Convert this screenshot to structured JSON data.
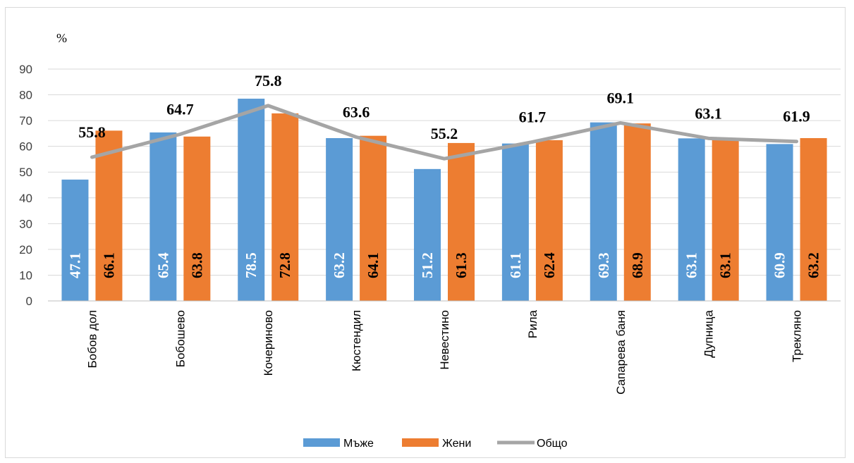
{
  "chart_data": {
    "type": "bar",
    "ylabel": "%",
    "ylim": [
      0,
      90
    ],
    "yticks": [
      0,
      10,
      20,
      30,
      40,
      50,
      60,
      70,
      80,
      90
    ],
    "grid": true,
    "legend_position": "bottom",
    "categories": [
      "Бобов дол",
      "Бобошево",
      "Кочериново",
      "Кюстендил",
      "Невестино",
      "Рила",
      "Сапарева баня",
      "Дупница",
      "Трекляно"
    ],
    "series": [
      {
        "name": "Мъже",
        "type": "bar",
        "color": "#5b9bd5",
        "label_color": "#ffffff",
        "values": [
          47.1,
          65.4,
          78.5,
          63.2,
          51.2,
          61.1,
          69.3,
          63.1,
          60.9
        ]
      },
      {
        "name": "Жени",
        "type": "bar",
        "color": "#ed7d31",
        "label_color": "#000000",
        "values": [
          66.1,
          63.8,
          72.8,
          64.1,
          61.3,
          62.4,
          68.9,
          63.1,
          63.2
        ]
      },
      {
        "name": "Общо",
        "type": "line",
        "color": "#a5a5a5",
        "values": [
          55.8,
          64.7,
          75.8,
          63.6,
          55.2,
          61.7,
          69.1,
          63.1,
          61.9
        ]
      }
    ]
  }
}
